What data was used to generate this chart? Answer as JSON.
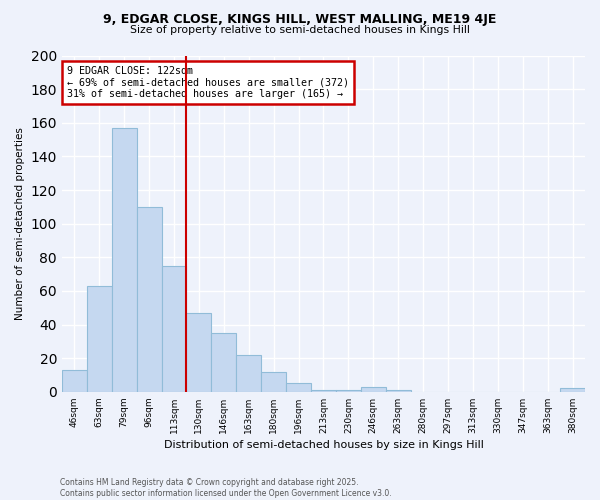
{
  "title1": "9, EDGAR CLOSE, KINGS HILL, WEST MALLING, ME19 4JE",
  "title2": "Size of property relative to semi-detached houses in Kings Hill",
  "xlabel": "Distribution of semi-detached houses by size in Kings Hill",
  "ylabel": "Number of semi-detached properties",
  "footnote": "Contains HM Land Registry data © Crown copyright and database right 2025.\nContains public sector information licensed under the Open Government Licence v3.0.",
  "categories": [
    "46sqm",
    "63sqm",
    "79sqm",
    "96sqm",
    "113sqm",
    "130sqm",
    "146sqm",
    "163sqm",
    "180sqm",
    "196sqm",
    "213sqm",
    "230sqm",
    "246sqm",
    "263sqm",
    "280sqm",
    "297sqm",
    "313sqm",
    "330sqm",
    "347sqm",
    "363sqm",
    "380sqm"
  ],
  "values": [
    13,
    63,
    157,
    110,
    75,
    47,
    35,
    22,
    12,
    5,
    1,
    1,
    3,
    1,
    0,
    0,
    0,
    0,
    0,
    0,
    2
  ],
  "bar_color": "#c5d8f0",
  "bar_edge_color": "#91bcd8",
  "background_color": "#eef2fb",
  "grid_color": "#ffffff",
  "property_line_x": 4.5,
  "annotation_text1": "9 EDGAR CLOSE: 122sqm",
  "annotation_text2": "← 69% of semi-detached houses are smaller (372)",
  "annotation_text3": "31% of semi-detached houses are larger (165) →",
  "annotation_box_color": "#ffffff",
  "annotation_box_edge": "#cc0000",
  "line_color": "#cc0000",
  "ylim": [
    0,
    200
  ],
  "yticks": [
    0,
    20,
    40,
    60,
    80,
    100,
    120,
    140,
    160,
    180,
    200
  ]
}
